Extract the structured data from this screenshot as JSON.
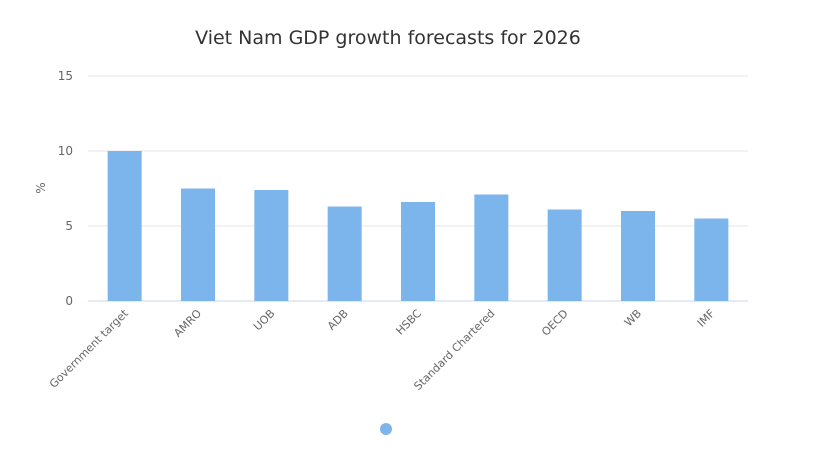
{
  "chart_data": {
    "type": "bar",
    "title": "Viet Nam GDP growth forecasts for 2026",
    "ylabel": "%",
    "xlabel": "",
    "ylim": [
      0,
      15
    ],
    "yticks": [
      0,
      5,
      10,
      15
    ],
    "grid": true,
    "categories": [
      "Government target",
      "AMRO",
      "UOB",
      "ADB",
      "HSBC",
      "Standard Chartered",
      "OECD",
      "WB",
      "IMF"
    ],
    "values": [
      10,
      7.5,
      7.4,
      6.3,
      6.6,
      7.1,
      6.1,
      6.0,
      5.5
    ],
    "colors": {
      "bar": "#7cb5ec",
      "grid": "#e6e6e6",
      "text": "#333333",
      "axis_text": "#666666",
      "legend_dot": "#7cb5ec"
    },
    "legend_placement": "bottom"
  }
}
